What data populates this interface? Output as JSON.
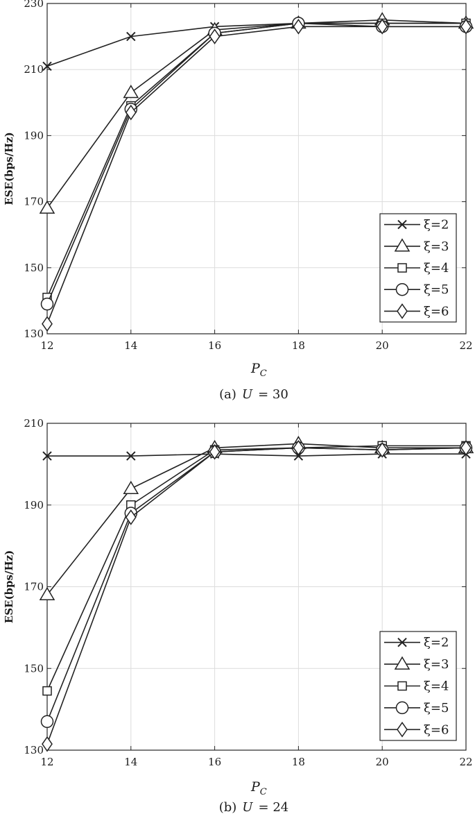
{
  "chart_data": [
    {
      "type": "line",
      "caption_prefix": "(a)",
      "caption_var": "U",
      "caption_value": "= 30",
      "xlabel": "P",
      "xlabel_sub": "C",
      "ylabel": "ESE(bps/Hz)",
      "x": [
        12,
        14,
        16,
        18,
        20,
        22
      ],
      "xlim": [
        12,
        22
      ],
      "ylim": [
        130,
        230
      ],
      "xticks": [
        "12",
        "14",
        "16",
        "18",
        "20",
        "22"
      ],
      "yticks": [
        "130",
        "150",
        "170",
        "190",
        "210",
        "230"
      ],
      "grid": true,
      "legend_position": "bottom-right",
      "series": [
        {
          "name": "ξ=2",
          "marker": "x",
          "values": [
            211,
            220,
            223,
            224,
            224,
            224
          ]
        },
        {
          "name": "ξ=3",
          "marker": "triangle",
          "values": [
            168,
            203,
            222,
            224,
            225,
            224
          ]
        },
        {
          "name": "ξ=4",
          "marker": "square",
          "values": [
            141,
            199,
            221,
            224,
            224,
            224
          ]
        },
        {
          "name": "ξ=5",
          "marker": "circle",
          "values": [
            139,
            198,
            221,
            224,
            223,
            223
          ]
        },
        {
          "name": "ξ=6",
          "marker": "diamond",
          "values": [
            133,
            197,
            220,
            223,
            223,
            223
          ]
        }
      ]
    },
    {
      "type": "line",
      "caption_prefix": "(b)",
      "caption_var": "U",
      "caption_value": "= 24",
      "xlabel": "P",
      "xlabel_sub": "C",
      "ylabel": "ESE(bps/Hz)",
      "x": [
        12,
        14,
        16,
        18,
        20,
        22
      ],
      "xlim": [
        12,
        22
      ],
      "ylim": [
        130,
        210
      ],
      "xticks": [
        "12",
        "14",
        "16",
        "18",
        "20",
        "22"
      ],
      "yticks": [
        "130",
        "150",
        "170",
        "190",
        "210"
      ],
      "grid": true,
      "legend_position": "bottom-right",
      "series": [
        {
          "name": "ξ=2",
          "marker": "x",
          "values": [
            202,
            202,
            202.5,
            202,
            202.5,
            202.5
          ]
        },
        {
          "name": "ξ=3",
          "marker": "triangle",
          "values": [
            168,
            194,
            204,
            205,
            204,
            204
          ]
        },
        {
          "name": "ξ=4",
          "marker": "square",
          "values": [
            144.5,
            190,
            203.5,
            204,
            204.5,
            204.5
          ]
        },
        {
          "name": "ξ=5",
          "marker": "circle",
          "values": [
            137,
            188,
            203,
            204,
            203.5,
            204
          ]
        },
        {
          "name": "ξ=6",
          "marker": "diamond",
          "values": [
            131.5,
            187,
            203,
            204,
            203.5,
            204
          ]
        }
      ]
    }
  ]
}
